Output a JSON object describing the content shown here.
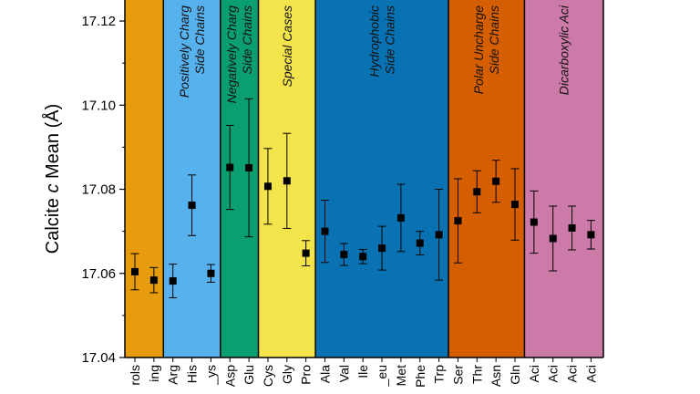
{
  "chart_data": {
    "type": "scatter",
    "ylabel_parts": [
      "Calcite ",
      "c",
      " Mean (Å)"
    ],
    "ylim": [
      17.04,
      17.125
    ],
    "yticks": [
      17.04,
      17.06,
      17.08,
      17.1,
      17.12
    ],
    "ytick_labels": [
      "17.04",
      "17.06",
      "17.08",
      "17.10",
      "17.12"
    ],
    "grid": false,
    "categories": [
      "rols",
      "ing",
      "Arg",
      "His",
      "_ys",
      "Asp",
      "Glu",
      "Cys",
      "Gly",
      "Pro",
      "Ala",
      "Val",
      "Ile",
      "_eu",
      "Met",
      "Phe",
      "Trp",
      "Ser",
      "Thr",
      "Asn",
      "Gln",
      "Aci",
      "Aci",
      "Aci",
      "Aci"
    ],
    "values": [
      17.0604,
      17.0584,
      17.0582,
      17.0762,
      17.06,
      17.0852,
      17.0851,
      17.0807,
      17.082,
      17.0648,
      17.07,
      17.0645,
      17.064,
      17.066,
      17.0732,
      17.0672,
      17.0692,
      17.0725,
      17.0794,
      17.0819,
      17.0764,
      17.0722,
      17.0683,
      17.0708,
      17.0692
    ],
    "errors": [
      0.0043,
      0.003,
      0.004,
      0.0072,
      0.0021,
      0.01,
      0.0164,
      0.009,
      0.0113,
      0.003,
      0.0074,
      0.0026,
      0.0017,
      0.0052,
      0.008,
      0.0028,
      0.0108,
      0.01,
      0.005,
      0.005,
      0.0085,
      0.0074,
      0.0077,
      0.0052,
      0.0034
    ],
    "regions": [
      {
        "lines": [
          ""
        ],
        "color": "#e69c0c",
        "start": 0,
        "end": 1
      },
      {
        "lines": [
          "Positively Charg",
          "Side Chains"
        ],
        "color": "#56b1ec",
        "start": 2,
        "end": 4
      },
      {
        "lines": [
          "Negatively Charg",
          "Side Chains"
        ],
        "color": "#0a9e70",
        "start": 5,
        "end": 6
      },
      {
        "lines": [
          "Special Cases"
        ],
        "color": "#f3e44c",
        "start": 7,
        "end": 9
      },
      {
        "lines": [
          "Hydrophobic",
          "Side Chains"
        ],
        "color": "#0872b2",
        "start": 10,
        "end": 16
      },
      {
        "lines": [
          "Polar Uncharge",
          "Side Chains"
        ],
        "color": "#d55e00",
        "start": 17,
        "end": 20
      },
      {
        "lines": [
          "Dicarboxylic Aci"
        ],
        "color": "#cc7aa8",
        "start": 21,
        "end": 24
      }
    ]
  }
}
